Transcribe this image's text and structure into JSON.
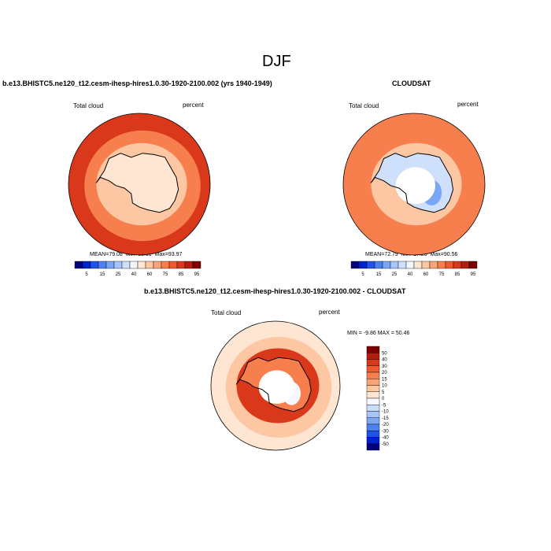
{
  "page_title": "DJF",
  "chart_data": [
    {
      "type": "heatmap",
      "projection": "south-polar-stereographic",
      "case_title": "b.e13.BHISTC5.ne120_t12.cesm-ihesp-hires1.0.30-1920-2100.002 (yrs 1940-1949)",
      "left_label": "Total cloud",
      "right_label": "percent",
      "stats": {
        "mean_label": "MEAN=",
        "mean": "79.08",
        "min_label": "Min=",
        "min": "33.31",
        "max_label": "Max=",
        "max": "93.97"
      },
      "field": {
        "outer": 88,
        "midlat": 80,
        "coast": 70,
        "interior": 55,
        "pocket": 45
      },
      "colorbar": {
        "orientation": "horizontal",
        "levels": [
          "5",
          "15",
          "25",
          "40",
          "60",
          "75",
          "85",
          "95"
        ],
        "colors": [
          "#00007f",
          "#0022cc",
          "#1e55e6",
          "#4b82f0",
          "#7aa6f5",
          "#a5c6fa",
          "#cfe0fc",
          "#f2f6ff",
          "#fee6d2",
          "#fdc7a3",
          "#fca475",
          "#f77f4d",
          "#ef5a2d",
          "#d9391a",
          "#b21e0d",
          "#7e0000"
        ]
      }
    },
    {
      "type": "heatmap",
      "projection": "south-polar-stereographic",
      "case_title": "CLOUDSAT",
      "left_label": "Total cloud",
      "right_label": "percent",
      "stats": {
        "mean_label": "MEAN=",
        "mean": "72.79",
        "min_label": "Min=",
        "min": "17.20",
        "max_label": "Max=",
        "max": "90.56"
      },
      "field": {
        "outer": 83,
        "midlat": 78,
        "coast": 62,
        "interior": 35,
        "pocket": 20,
        "missing_pole": true
      },
      "colorbar": {
        "orientation": "horizontal",
        "levels": [
          "5",
          "15",
          "25",
          "40",
          "60",
          "75",
          "85",
          "95"
        ],
        "colors": [
          "#00007f",
          "#0022cc",
          "#1e55e6",
          "#4b82f0",
          "#7aa6f5",
          "#a5c6fa",
          "#cfe0fc",
          "#f2f6ff",
          "#fee6d2",
          "#fdc7a3",
          "#fca475",
          "#f77f4d",
          "#ef5a2d",
          "#d9391a",
          "#b21e0d",
          "#7e0000"
        ]
      }
    },
    {
      "type": "heatmap",
      "projection": "south-polar-stereographic",
      "case_title": "b.e13.BHISTC5.ne120_t12.cesm-ihesp-hires1.0.30-1920-2100.002 - CLOUDSAT",
      "left_label": "Total cloud",
      "right_label": "percent",
      "minmax": "MIN =  -9.86 MAX =  50.46",
      "field": {
        "outer": 3,
        "midlat": 7,
        "coast": 30,
        "interior": 15,
        "pocket": -3,
        "missing_pole": true
      },
      "colorbar": {
        "orientation": "vertical",
        "levels": [
          "50",
          "40",
          "30",
          "20",
          "15",
          "10",
          "5",
          "0",
          "-5",
          "-10",
          "-15",
          "-20",
          "-30",
          "-40",
          "-50"
        ],
        "colors": [
          "#7e0000",
          "#b21e0d",
          "#d9391a",
          "#ef5a2d",
          "#f77f4d",
          "#fca475",
          "#fdc7a3",
          "#fee6d2",
          "#f5f9ff",
          "#c9dcf8",
          "#a5c6fa",
          "#7aa6f5",
          "#4b82f0",
          "#1e55e6",
          "#0022cc",
          "#00007f"
        ]
      }
    }
  ]
}
